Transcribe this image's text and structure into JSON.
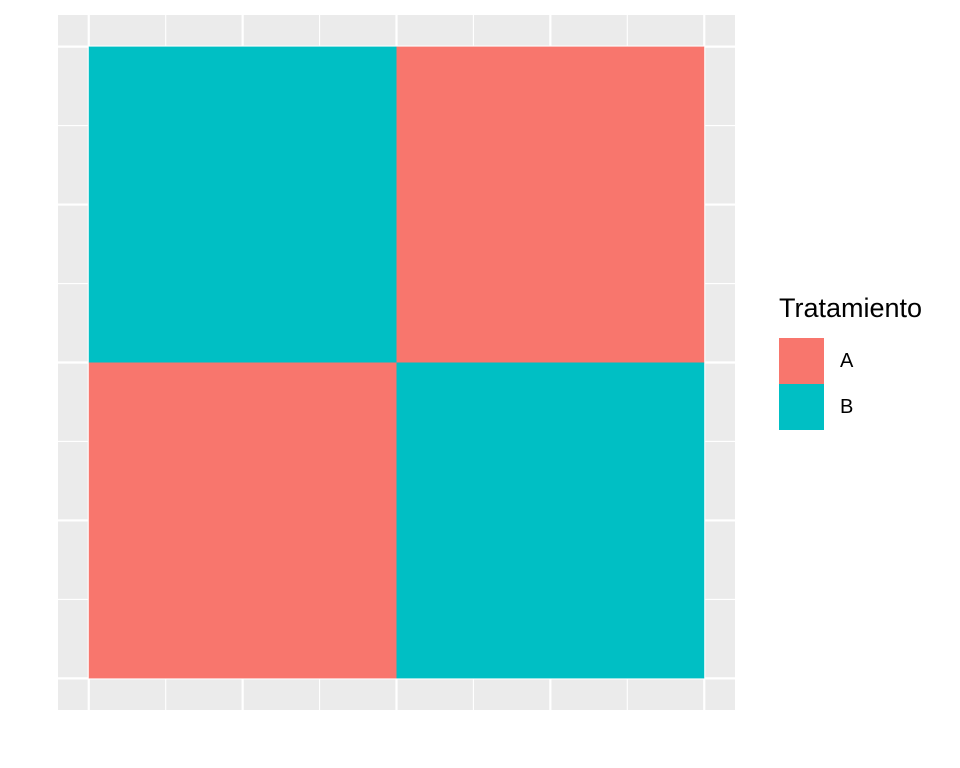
{
  "chart_data": {
    "type": "heatmap",
    "title": "",
    "xlabel": "",
    "ylabel": "",
    "xlim": [
      0.5,
      2.5
    ],
    "ylim": [
      0.5,
      2.5
    ],
    "grid": true,
    "x_ticks_shown": false,
    "y_ticks_shown": false,
    "cells": [
      {
        "x": 1,
        "y": 1,
        "value": "A"
      },
      {
        "x": 2,
        "y": 1,
        "value": "B"
      },
      {
        "x": 1,
        "y": 2,
        "value": "B"
      },
      {
        "x": 2,
        "y": 2,
        "value": "A"
      }
    ],
    "legend": {
      "title": "Tratamiento",
      "placement": "right",
      "entries": [
        {
          "label": "A",
          "color": "#F8766D"
        },
        {
          "label": "B",
          "color": "#00BFC4"
        }
      ]
    }
  },
  "colors": {
    "panel_background": "#EBEBEB",
    "gridline": "#FFFFFF"
  }
}
